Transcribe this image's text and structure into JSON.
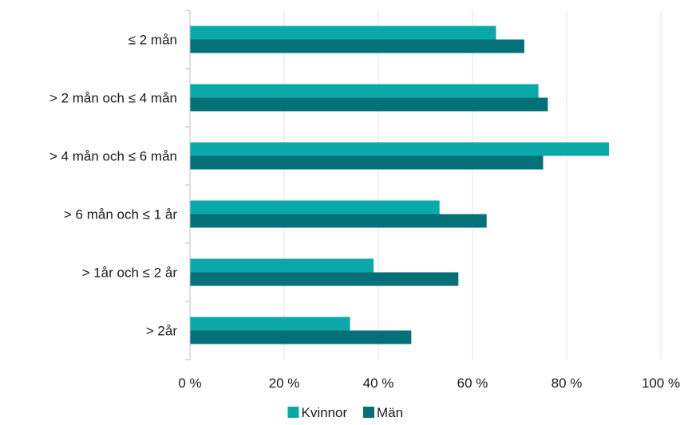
{
  "chart_data": {
    "type": "bar",
    "orientation": "horizontal",
    "categories": [
      "≤ 2 mån",
      "> 2 mån och ≤ 4 mån",
      "> 4 mån och ≤ 6 mån",
      "> 6 mån och ≤ 1 år",
      "> 1år och ≤ 2 år",
      "> 2år"
    ],
    "series": [
      {
        "name": "Kvinnor",
        "color": "#0aa8a8",
        "values": [
          65,
          74,
          89,
          53,
          39,
          34
        ]
      },
      {
        "name": "Män",
        "color": "#047077",
        "values": [
          71,
          76,
          75,
          63,
          57,
          47
        ]
      }
    ],
    "xlim": [
      0,
      100
    ],
    "xticks": [
      0,
      20,
      40,
      60,
      80,
      100
    ],
    "xtick_labels": [
      "0 %",
      "20 %",
      "40 %",
      "60 %",
      "80 %",
      "100 %"
    ],
    "grid": true,
    "legend_position": "bottom",
    "title": "",
    "xlabel": "",
    "ylabel": ""
  }
}
